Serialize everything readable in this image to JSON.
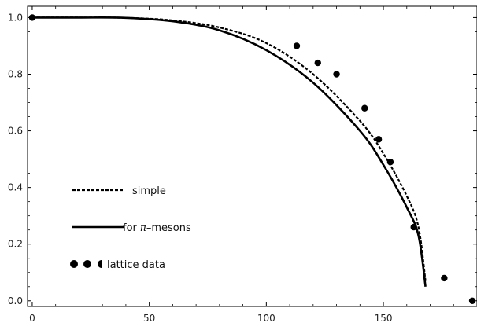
{
  "chart_data": {
    "type": "line",
    "title": "",
    "xlabel": "",
    "ylabel": "",
    "xlim": [
      -2,
      190
    ],
    "ylim": [
      -0.02,
      1.04
    ],
    "x_ticks": [
      0,
      50,
      100,
      150
    ],
    "x_tick_labels": [
      "0",
      "50",
      "100",
      "150"
    ],
    "y_ticks": [
      0.0,
      0.2,
      0.4,
      0.6,
      0.8,
      1.0
    ],
    "y_tick_labels": [
      "0.0",
      "0.2",
      "0.4",
      "0.6",
      "0.8",
      "1.0"
    ],
    "grid": false,
    "legend_position": "left-center",
    "series": [
      {
        "name": "simple",
        "style": "dashed",
        "color": "#000000",
        "x": [
          0,
          20,
          40,
          60,
          80,
          100,
          120,
          140,
          150,
          160,
          165,
          168
        ],
        "y": [
          1.0,
          1.0,
          0.999,
          0.99,
          0.965,
          0.91,
          0.8,
          0.635,
          0.52,
          0.37,
          0.26,
          0.07
        ]
      },
      {
        "name": "for π–mesons",
        "style": "solid",
        "color": "#000000",
        "x": [
          0,
          20,
          40,
          60,
          80,
          100,
          120,
          140,
          150,
          160,
          165,
          168
        ],
        "y": [
          1.0,
          1.0,
          0.999,
          0.987,
          0.955,
          0.885,
          0.77,
          0.6,
          0.48,
          0.33,
          0.23,
          0.05
        ]
      },
      {
        "name": "lattice data",
        "style": "markers",
        "color": "#000000",
        "x": [
          0,
          113,
          122,
          130,
          142,
          148,
          153,
          163,
          176,
          188
        ],
        "y": [
          1.0,
          0.9,
          0.84,
          0.8,
          0.68,
          0.57,
          0.49,
          0.26,
          0.08,
          0.0
        ]
      }
    ],
    "legend": {
      "entries": [
        {
          "text": "simple"
        },
        {
          "prefix": "for ",
          "math": "π",
          "suffix": "–mesons"
        },
        {
          "text": "lattice data"
        }
      ]
    }
  }
}
